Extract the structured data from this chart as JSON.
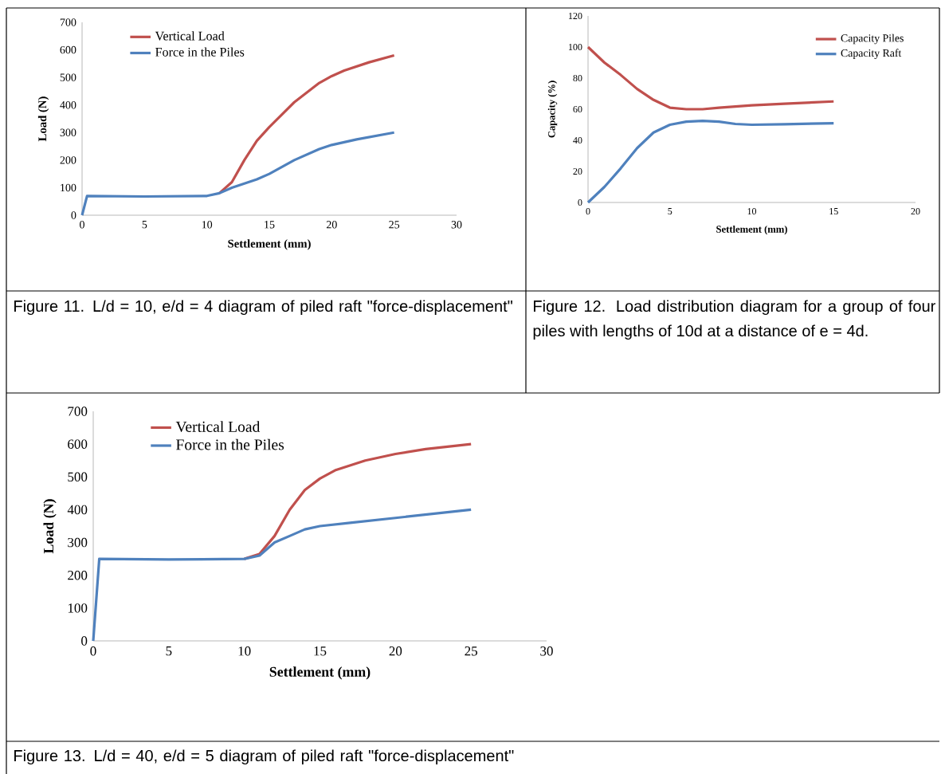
{
  "chart_data": [
    {
      "type": "line",
      "xlabel": "Settlement (mm)",
      "ylabel": "Load (N)",
      "xlim": [
        0,
        30
      ],
      "ylim": [
        0,
        700
      ],
      "xticks": [
        0,
        5,
        10,
        15,
        20,
        25,
        30
      ],
      "yticks": [
        0,
        100,
        200,
        300,
        400,
        500,
        600,
        700
      ],
      "legend": "top left",
      "marker": "none",
      "annotations": [
        "Figure 11. L/d = 10, e/d = 4 diagram of piled raft \"force-displacement\""
      ],
      "series": [
        {
          "name": "Vertical Load",
          "color": "#c0504d",
          "x": [
            11,
            12,
            13,
            14,
            15,
            17,
            19,
            20,
            21,
            23,
            25
          ],
          "values": [
            80,
            120,
            200,
            270,
            320,
            410,
            480,
            505,
            525,
            555,
            580
          ]
        },
        {
          "name": "Force in the Piles",
          "color": "#4f81bd",
          "x": [
            0,
            0.4,
            5,
            10,
            11,
            12,
            14,
            15,
            17,
            19,
            20,
            22,
            25
          ],
          "values": [
            0,
            70,
            68,
            70,
            80,
            100,
            130,
            150,
            200,
            240,
            255,
            275,
            300
          ]
        }
      ]
    },
    {
      "type": "line",
      "xlabel": "Settlement (mm)",
      "ylabel": "Capacity (%)",
      "xlim": [
        0,
        20
      ],
      "ylim": [
        0,
        120
      ],
      "xticks": [
        0,
        5,
        10,
        15,
        20
      ],
      "yticks": [
        0,
        20,
        40,
        60,
        80,
        100,
        120
      ],
      "legend": "top right",
      "marker": "none",
      "annotations": [
        "Figure 12. Load distribution diagram for a group of four piles with lengths of 10d at a distance of e = 4d."
      ],
      "series": [
        {
          "name": "Capacity Piles",
          "color": "#c0504d",
          "x": [
            0,
            1,
            2,
            3,
            4,
            5,
            6,
            7,
            8,
            10,
            12,
            15
          ],
          "values": [
            100,
            90,
            82,
            73,
            66,
            61,
            60,
            60,
            61,
            62.5,
            63.5,
            65
          ]
        },
        {
          "name": "Capacity Raft",
          "color": "#4f81bd",
          "x": [
            0,
            1,
            2,
            3,
            4,
            5,
            6,
            7,
            8,
            9,
            10,
            12,
            15
          ],
          "values": [
            0,
            10,
            22,
            35,
            45,
            50,
            52,
            52.5,
            52,
            50.5,
            50,
            50.3,
            51
          ]
        }
      ]
    },
    {
      "type": "line",
      "xlabel": "Settlement (mm)",
      "ylabel": "Load (N)",
      "xlim": [
        0,
        30
      ],
      "ylim": [
        0,
        700
      ],
      "xticks": [
        0,
        5,
        10,
        15,
        20,
        25,
        30
      ],
      "yticks": [
        0,
        100,
        200,
        300,
        400,
        500,
        600,
        700
      ],
      "legend": "top left",
      "marker": "none",
      "annotations": [
        "Figure 13. L/d = 40, e/d = 5 diagram of piled raft \"force-displacement\""
      ],
      "series": [
        {
          "name": "Vertical Load",
          "color": "#c0504d",
          "x": [
            10,
            11,
            12,
            13,
            14,
            15,
            16,
            18,
            20,
            22,
            25
          ],
          "values": [
            250,
            265,
            320,
            400,
            460,
            495,
            520,
            550,
            570,
            585,
            600
          ]
        },
        {
          "name": "Force in the Piles",
          "color": "#4f81bd",
          "x": [
            0,
            0.4,
            5,
            10,
            11,
            12,
            13,
            14,
            15,
            17,
            20,
            25
          ],
          "values": [
            0,
            250,
            248,
            250,
            260,
            300,
            320,
            340,
            350,
            360,
            375,
            400
          ]
        }
      ]
    }
  ]
}
